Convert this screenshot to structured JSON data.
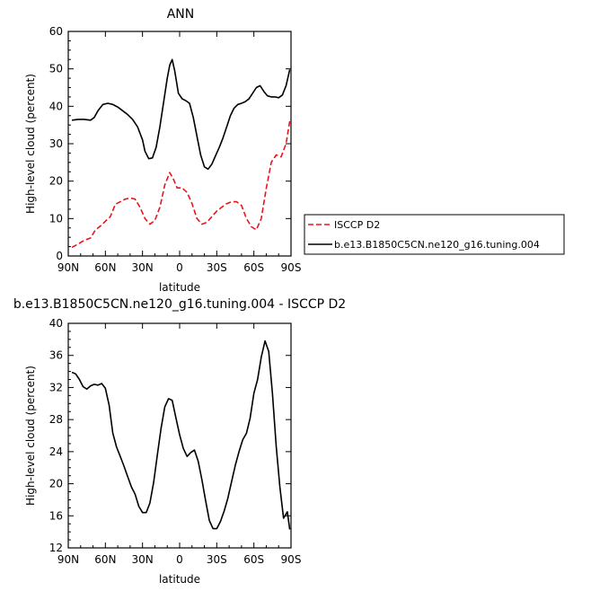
{
  "chart_data": [
    {
      "type": "line",
      "title": "ANN",
      "xlabel": "latitude",
      "ylabel": "High-level cloud (percent)",
      "xlim": [
        90,
        -90
      ],
      "ylim": [
        0,
        60
      ],
      "x_ticks": [
        90,
        60,
        30,
        0,
        -30,
        -60,
        -90
      ],
      "x_tick_labels": [
        "90N",
        "60N",
        "30N",
        "0",
        "30S",
        "60S",
        "90S"
      ],
      "y_ticks": [
        0,
        10,
        20,
        30,
        40,
        50,
        60
      ],
      "y_tick_labels": [
        "0",
        "10",
        "20",
        "30",
        "40",
        "50",
        "60"
      ],
      "grid": false,
      "legend": "right",
      "series": [
        {
          "name": "ISCCP D2",
          "color": "#e8141b",
          "dash": "dashed",
          "x": [
            87,
            82,
            77,
            72,
            68,
            64,
            60,
            56,
            52,
            48,
            44,
            40,
            36,
            32,
            28,
            24,
            20,
            16,
            12,
            8,
            5,
            2,
            -2,
            -6,
            -10,
            -14,
            -18,
            -22,
            -26,
            -30,
            -34,
            -38,
            -42,
            -46,
            -50,
            -54,
            -58,
            -62,
            -66,
            -70,
            -74,
            -78,
            -82,
            -86,
            -89
          ],
          "y": [
            2.3,
            3.2,
            4.2,
            4.8,
            7.0,
            8.0,
            9.3,
            10.5,
            13.8,
            14.5,
            15.2,
            15.5,
            15.2,
            13.0,
            10.0,
            8.5,
            9.5,
            13.0,
            19.0,
            22.3,
            20.5,
            18.2,
            18.2,
            17.0,
            14.0,
            10.0,
            8.5,
            9.0,
            10.5,
            12.0,
            13.0,
            14.0,
            14.5,
            14.5,
            13.5,
            10.0,
            7.8,
            7.0,
            10.0,
            18.0,
            25.0,
            27.0,
            26.5,
            30.0,
            36.0
          ]
        },
        {
          "name": "b.e13.B1850C5CN.ne120_g16.tuning.004",
          "color": "#000000",
          "dash": "solid",
          "x": [
            87,
            82,
            77,
            72,
            69,
            66,
            62,
            58,
            54,
            50,
            46,
            42,
            38,
            34,
            30,
            28,
            25,
            22,
            19,
            16,
            13,
            10,
            8,
            6,
            4,
            1,
            -2,
            -5,
            -8,
            -11,
            -14,
            -17,
            -20,
            -23,
            -26,
            -29,
            -32,
            -35,
            -38,
            -41,
            -44,
            -47,
            -50,
            -53,
            -56,
            -59,
            -62,
            -65,
            -68,
            -71,
            -74,
            -77,
            -80,
            -83,
            -86,
            -89
          ],
          "y": [
            36.3,
            36.5,
            36.5,
            36.3,
            37.0,
            38.8,
            40.5,
            40.8,
            40.5,
            39.8,
            38.8,
            37.8,
            36.5,
            34.5,
            31.0,
            28.0,
            26.0,
            26.2,
            29.0,
            34.5,
            41.0,
            47.5,
            51.0,
            52.5,
            49.5,
            43.5,
            42.0,
            41.5,
            40.8,
            37.0,
            32.0,
            27.0,
            23.8,
            23.2,
            24.5,
            26.8,
            29.0,
            31.5,
            34.5,
            37.5,
            39.5,
            40.5,
            40.8,
            41.2,
            42.0,
            43.5,
            45.0,
            45.5,
            44.0,
            42.8,
            42.5,
            42.5,
            42.3,
            43.0,
            45.5,
            49.8
          ]
        }
      ]
    },
    {
      "type": "line",
      "title": "b.e13.B1850C5CN.ne120_g16.tuning.004 - ISCCP D2",
      "xlabel": "latitude",
      "ylabel": "High-level cloud (percent)",
      "xlim": [
        90,
        -90
      ],
      "ylim": [
        12,
        40
      ],
      "x_ticks": [
        90,
        60,
        30,
        0,
        -30,
        -60,
        -90
      ],
      "x_tick_labels": [
        "90N",
        "60N",
        "30N",
        "0",
        "30S",
        "60S",
        "90S"
      ],
      "y_ticks": [
        12,
        16,
        20,
        24,
        28,
        32,
        36,
        40
      ],
      "y_tick_labels": [
        "12",
        "16",
        "20",
        "24",
        "28",
        "32",
        "36",
        "40"
      ],
      "grid": false,
      "series": [
        {
          "color": "#000000",
          "dash": "solid",
          "x": [
            87,
            84,
            81,
            78,
            75,
            72,
            69,
            66,
            63,
            60,
            57,
            54,
            51,
            48,
            45,
            42,
            39,
            36,
            33,
            30,
            27,
            24,
            21,
            18,
            15,
            12,
            9,
            6,
            3,
            0,
            -3,
            -6,
            -9,
            -12,
            -15,
            -18,
            -21,
            -24,
            -27,
            -30,
            -33,
            -36,
            -39,
            -42,
            -45,
            -48,
            -51,
            -54,
            -57,
            -60,
            -63,
            -66,
            -69,
            -72,
            -75,
            -78,
            -81,
            -84,
            -87,
            -89
          ],
          "y": [
            33.9,
            33.7,
            33.0,
            32.1,
            31.8,
            32.2,
            32.4,
            32.3,
            32.5,
            31.9,
            29.8,
            26.3,
            24.6,
            23.4,
            22.2,
            20.9,
            19.6,
            18.7,
            17.2,
            16.4,
            16.4,
            17.6,
            20.2,
            23.6,
            26.9,
            29.6,
            30.6,
            30.4,
            28.2,
            26.1,
            24.4,
            23.4,
            23.9,
            24.2,
            22.8,
            20.5,
            17.9,
            15.4,
            14.4,
            14.4,
            15.3,
            16.6,
            18.2,
            20.3,
            22.3,
            24.0,
            25.5,
            26.3,
            28.2,
            31.3,
            33.0,
            35.8,
            37.8,
            36.5,
            31.3,
            24.7,
            19.6,
            15.7,
            16.5,
            14.3
          ]
        }
      ]
    }
  ]
}
